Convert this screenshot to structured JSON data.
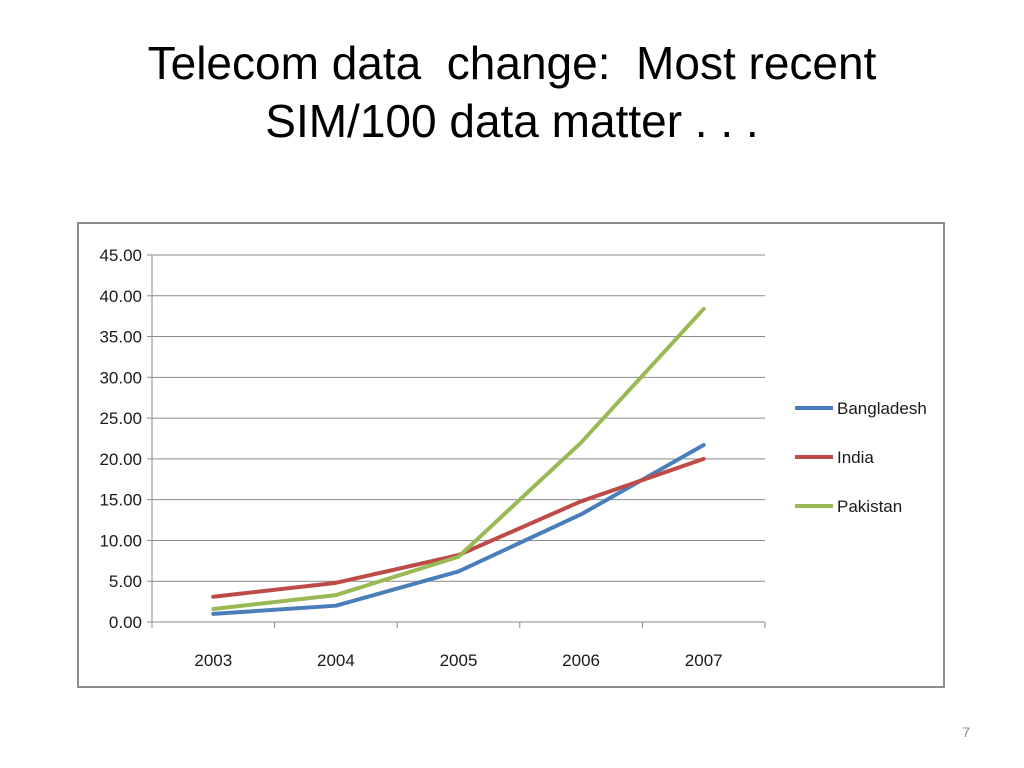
{
  "slide": {
    "title_line1": "Telecom data  change:  Most recent",
    "title_line2": "SIM/100 data matter . . .",
    "page_number": "7"
  },
  "chart_data": {
    "type": "line",
    "title": "",
    "xlabel": "",
    "ylabel": "",
    "categories": [
      "2003",
      "2004",
      "2005",
      "2006",
      "2007"
    ],
    "ylim": [
      0,
      45
    ],
    "ytick_step": 5,
    "ytick_labels": [
      "0.00",
      "5.00",
      "10.00",
      "15.00",
      "20.00",
      "25.00",
      "30.00",
      "35.00",
      "40.00",
      "45.00"
    ],
    "grid": true,
    "legend_position": "right",
    "series": [
      {
        "name": "Bangladesh",
        "color": "#4a7ebb",
        "values": [
          1.0,
          2.0,
          6.2,
          13.2,
          21.7
        ]
      },
      {
        "name": "India",
        "color": "#be4b48",
        "values": [
          3.1,
          4.8,
          8.2,
          14.8,
          20.0
        ]
      },
      {
        "name": "Pakistan",
        "color": "#98b954",
        "values": [
          1.6,
          3.3,
          8.0,
          22.0,
          38.4
        ]
      }
    ]
  }
}
